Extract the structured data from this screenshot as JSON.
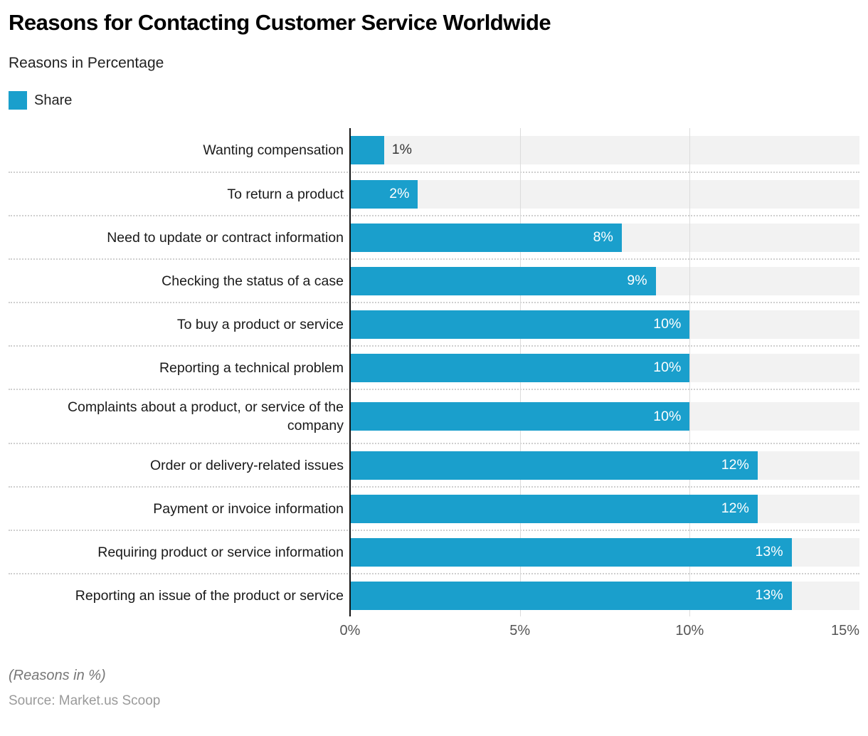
{
  "header": {
    "title": "Reasons for Contacting Customer Service Worldwide",
    "subtitle": "Reasons in Percentage"
  },
  "legend": {
    "label": "Share",
    "color": "#1A9FCC"
  },
  "chart_data": {
    "type": "bar",
    "orientation": "horizontal",
    "title": "Reasons for Contacting Customer Service Worldwide",
    "subtitle": "Reasons in Percentage",
    "categories": [
      "Wanting compensation",
      "To return a product",
      "Need to update or contract information",
      "Checking the status of a case",
      "To buy a product or service",
      "Reporting a technical problem",
      "Complaints about a product, or service of the company",
      "Order or delivery-related issues",
      "Payment or invoice information",
      "Requiring product or service information",
      "Reporting an issue of the product or service"
    ],
    "series": [
      {
        "name": "Share",
        "values": [
          1,
          2,
          8,
          9,
          10,
          10,
          10,
          12,
          12,
          13,
          13
        ]
      }
    ],
    "value_labels": [
      "1%",
      "2%",
      "8%",
      "9%",
      "10%",
      "10%",
      "10%",
      "12%",
      "12%",
      "13%",
      "13%"
    ],
    "xlim": [
      0,
      15
    ],
    "x_ticks": [
      "0%",
      "5%",
      "10%",
      "15%"
    ],
    "grid": true,
    "legend_position": "top-left",
    "bar_color": "#1A9FCC",
    "track_color": "#f2f2f2"
  },
  "footer": {
    "note": "(Reasons in %)",
    "source": "Source: Market.us Scoop"
  }
}
